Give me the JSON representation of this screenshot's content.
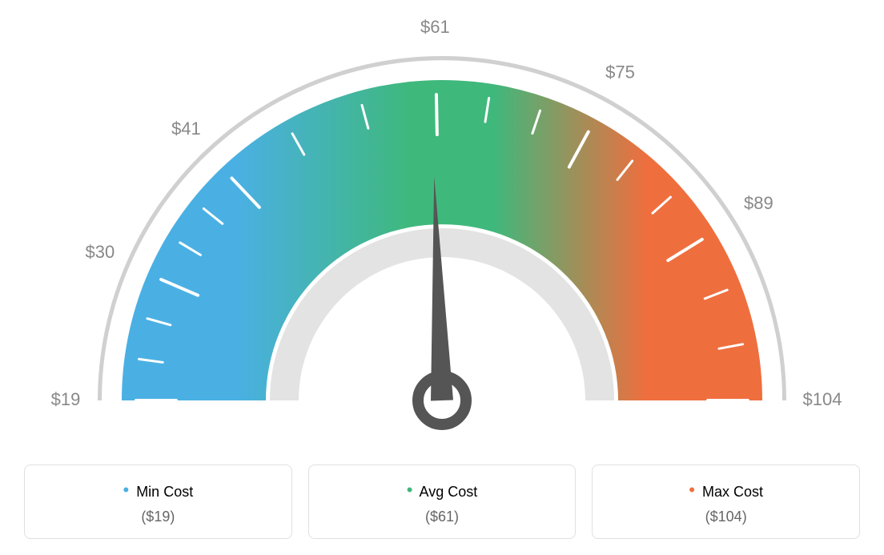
{
  "gauge": {
    "type": "gauge",
    "min": 19,
    "max": 104,
    "avg": 61,
    "tick_values": [
      19,
      30,
      41,
      61,
      75,
      89,
      104
    ],
    "tick_labels": [
      "$19",
      "$30",
      "$41",
      "$61",
      "$75",
      "$89",
      "$104"
    ],
    "minor_ticks_between": 2,
    "colors": {
      "min": "#4ab0e3",
      "avg": "#3fb87c",
      "max": "#ef6e3e",
      "outline": "#d0d0d0",
      "inner_ring": "#e3e3e3",
      "tick_color": "#ffffff",
      "label_color": "#888888",
      "needle": "#555555",
      "background": "#ffffff"
    },
    "geometry": {
      "outer_radius": 400,
      "inner_radius": 220,
      "outline_radius_outer": 430,
      "outline_radius_inner": 425,
      "inner_ring_outer": 215,
      "inner_ring_inner": 179,
      "start_angle_deg": 180,
      "end_angle_deg": 0,
      "needle_length": 280,
      "needle_angle_deg": 92,
      "hub_outer_radius": 30,
      "hub_inner_radius": 17
    }
  },
  "legend": {
    "min": {
      "label": "Min Cost",
      "value": "($19)"
    },
    "avg": {
      "label": "Avg Cost",
      "value": "($61)"
    },
    "max": {
      "label": "Max Cost",
      "value": "($104)"
    }
  },
  "typography": {
    "tick_fontsize": 22,
    "legend_title_fontsize": 18,
    "legend_value_fontsize": 18
  }
}
